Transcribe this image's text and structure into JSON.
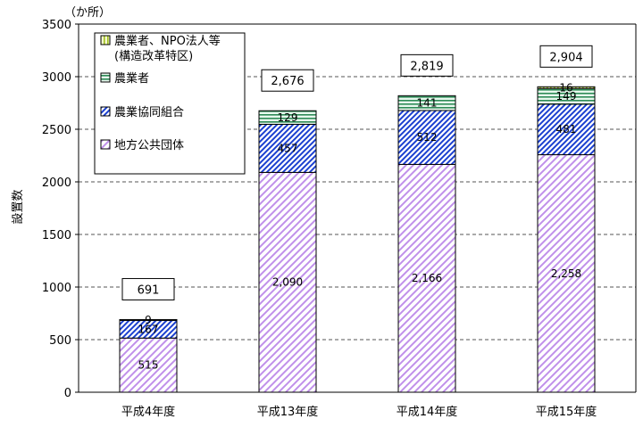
{
  "chart_data": {
    "type": "bar",
    "stacked": true,
    "unit_note": "（か所）",
    "ylabel": "設置数",
    "ylim": [
      0,
      3500
    ],
    "yticks": [
      0,
      500,
      1000,
      1500,
      2000,
      2500,
      3000,
      3500
    ],
    "grid": true,
    "legend_position": "top-left",
    "categories": [
      "平成4年度",
      "平成13年度",
      "平成14年度",
      "平成15年度"
    ],
    "series": [
      {
        "name": "地方公共団体",
        "values": [
          515,
          2090,
          2166,
          2258
        ],
        "labels": [
          "515",
          "2,090",
          "2,166",
          "2,258"
        ],
        "color": "#b070e0",
        "pattern": "diag-purple"
      },
      {
        "name": "農業協同組合",
        "values": [
          167,
          457,
          512,
          481
        ],
        "labels": [
          "167",
          "457",
          "512",
          "481"
        ],
        "color": "#1a3fd0",
        "pattern": "diag-blue"
      },
      {
        "name": "農業者",
        "values": [
          9,
          129,
          141,
          149
        ],
        "labels": [
          "9",
          "129",
          "141",
          "149"
        ],
        "color": "#2e8b57",
        "pattern": "horiz-green"
      },
      {
        "name": "農業者、NPO法人等",
        "name_line2": "(構造改革特区)",
        "values": [
          0,
          0,
          0,
          16
        ],
        "labels": [
          "",
          "",
          "",
          "16"
        ],
        "color": "#a0c020",
        "pattern": "vert-yellow"
      }
    ],
    "totals": [
      691,
      2676,
      2819,
      2904
    ],
    "total_labels": [
      "691",
      "2,676",
      "2,819",
      "2,904"
    ]
  }
}
